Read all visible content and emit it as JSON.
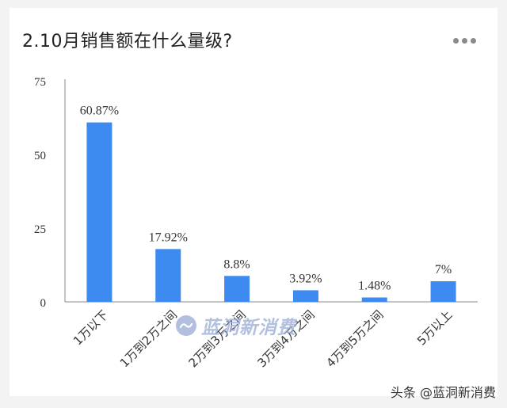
{
  "chart_data": {
    "type": "bar",
    "title": "2.10月销售额在什么量级?",
    "categories": [
      "1万以下",
      "1万到2万之间",
      "2万到3万之间",
      "3万到4万之间",
      "4万到5万之间",
      "5万以上"
    ],
    "values": [
      60.87,
      17.92,
      8.8,
      3.92,
      1.48,
      7
    ],
    "data_labels": [
      "60.87%",
      "17.92%",
      "8.8%",
      "3.92%",
      "1.48%",
      "7%"
    ],
    "ylim": [
      0,
      75
    ],
    "yticks": [
      "0",
      "25",
      "50",
      "75"
    ],
    "xlabel": "",
    "ylabel": "",
    "grid": false,
    "bar_color": "#3d8bf0"
  },
  "watermark": {
    "text": "蓝洞新消费"
  },
  "footer": {
    "text": "头条 @蓝洞新消费"
  }
}
